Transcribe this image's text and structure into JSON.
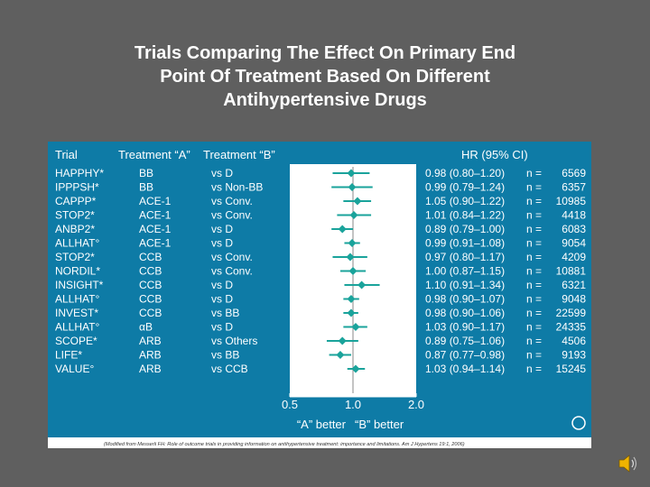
{
  "slide": {
    "title_lines": [
      "Trials Comparing The Effect On Primary End",
      "Point Of Treatment Based On Different",
      "Antihypertensive Drugs"
    ]
  },
  "chart_data": {
    "type": "forest",
    "columns": {
      "trial": "Trial",
      "treatment_a": "Treatment “A”",
      "treatment_b": "Treatment “B”",
      "hr": "HR (95% CI)"
    },
    "rows": [
      {
        "trial": "HAPPHY*",
        "a": "BB",
        "b": "vs D",
        "hr": 0.98,
        "lo": 0.8,
        "hi": 1.2,
        "hr_text": "0.98 (0.80–1.20)",
        "n": "6569"
      },
      {
        "trial": "IPPPSH*",
        "a": "BB",
        "b": "vs Non-BB",
        "hr": 0.99,
        "lo": 0.79,
        "hi": 1.24,
        "hr_text": "0.99 (0.79–1.24)",
        "n": "6357"
      },
      {
        "trial": "CAPPP*",
        "a": "ACE-1",
        "b": "vs Conv.",
        "hr": 1.05,
        "lo": 0.9,
        "hi": 1.22,
        "hr_text": "1.05 (0.90–1.22)",
        "n": "10985"
      },
      {
        "trial": "STOP2*",
        "a": "ACE-1",
        "b": "vs Conv.",
        "hr": 1.01,
        "lo": 0.84,
        "hi": 1.22,
        "hr_text": "1.01 (0.84–1.22)",
        "n": "4418"
      },
      {
        "trial": "ANBP2*",
        "a": "ACE-1",
        "b": "vs D",
        "hr": 0.89,
        "lo": 0.79,
        "hi": 1.0,
        "hr_text": "0.89 (0.79–1.00)",
        "n": "6083"
      },
      {
        "trial": "ALLHAT°",
        "a": "ACE-1",
        "b": "vs D",
        "hr": 0.99,
        "lo": 0.91,
        "hi": 1.08,
        "hr_text": "0.99 (0.91–1.08)",
        "n": "9054"
      },
      {
        "trial": "STOP2*",
        "a": "CCB",
        "b": "vs Conv.",
        "hr": 0.97,
        "lo": 0.8,
        "hi": 1.17,
        "hr_text": "0.97 (0.80–1.17)",
        "n": "4209"
      },
      {
        "trial": "NORDIL*",
        "a": "CCB",
        "b": "vs Conv.",
        "hr": 1.0,
        "lo": 0.87,
        "hi": 1.15,
        "hr_text": "1.00 (0.87–1.15)",
        "n": "10881"
      },
      {
        "trial": "INSIGHT*",
        "a": "CCB",
        "b": "vs D",
        "hr": 1.1,
        "lo": 0.91,
        "hi": 1.34,
        "hr_text": "1.10 (0.91–1.34)",
        "n": "6321"
      },
      {
        "trial": "ALLHAT°",
        "a": "CCB",
        "b": "vs D",
        "hr": 0.98,
        "lo": 0.9,
        "hi": 1.07,
        "hr_text": "0.98 (0.90–1.07)",
        "n": "9048"
      },
      {
        "trial": "INVEST*",
        "a": "CCB",
        "b": "vs BB",
        "hr": 0.98,
        "lo": 0.9,
        "hi": 1.06,
        "hr_text": "0.98 (0.90–1.06)",
        "n": "22599"
      },
      {
        "trial": "ALLHAT°",
        "a": "αB",
        "b": "vs D",
        "hr": 1.03,
        "lo": 0.9,
        "hi": 1.17,
        "hr_text": "1.03 (0.90–1.17)",
        "n": "24335"
      },
      {
        "trial": "SCOPE*",
        "a": "ARB",
        "b": "vs Others",
        "hr": 0.89,
        "lo": 0.75,
        "hi": 1.06,
        "hr_text": "0.89 (0.75–1.06)",
        "n": "4506"
      },
      {
        "trial": "LIFE*",
        "a": "ARB",
        "b": "vs BB",
        "hr": 0.87,
        "lo": 0.77,
        "hi": 0.98,
        "hr_text": "0.87 (0.77–0.98)",
        "n": "9193"
      },
      {
        "trial": "VALUE°",
        "a": "ARB",
        "b": "vs CCB",
        "hr": 1.03,
        "lo": 0.94,
        "hi": 1.14,
        "hr_text": "1.03 (0.94–1.14)",
        "n": "15245"
      }
    ],
    "n_prefix": "n =",
    "x_scale": "log",
    "x_range": [
      0.5,
      2.0
    ],
    "x_ticks": [
      0.5,
      1.0,
      2.0
    ],
    "x_tick_labels": [
      "0.5",
      "1.0",
      "2.0"
    ],
    "reference_line": 1.0,
    "xlabel_left": "“A” better",
    "xlabel_right": "“B” better",
    "footnote": "(Modified from Messerli FH: Role of outcome trials in providing information on antihypertensive treatment: importance and limitations. Am J Hypertens 19:1, 2006)",
    "colors": {
      "panel": "#0e7ba6",
      "marker": "#1aa39b",
      "text": "#ffffff",
      "footer": "#ffffff",
      "footer_text": "#333333"
    }
  }
}
